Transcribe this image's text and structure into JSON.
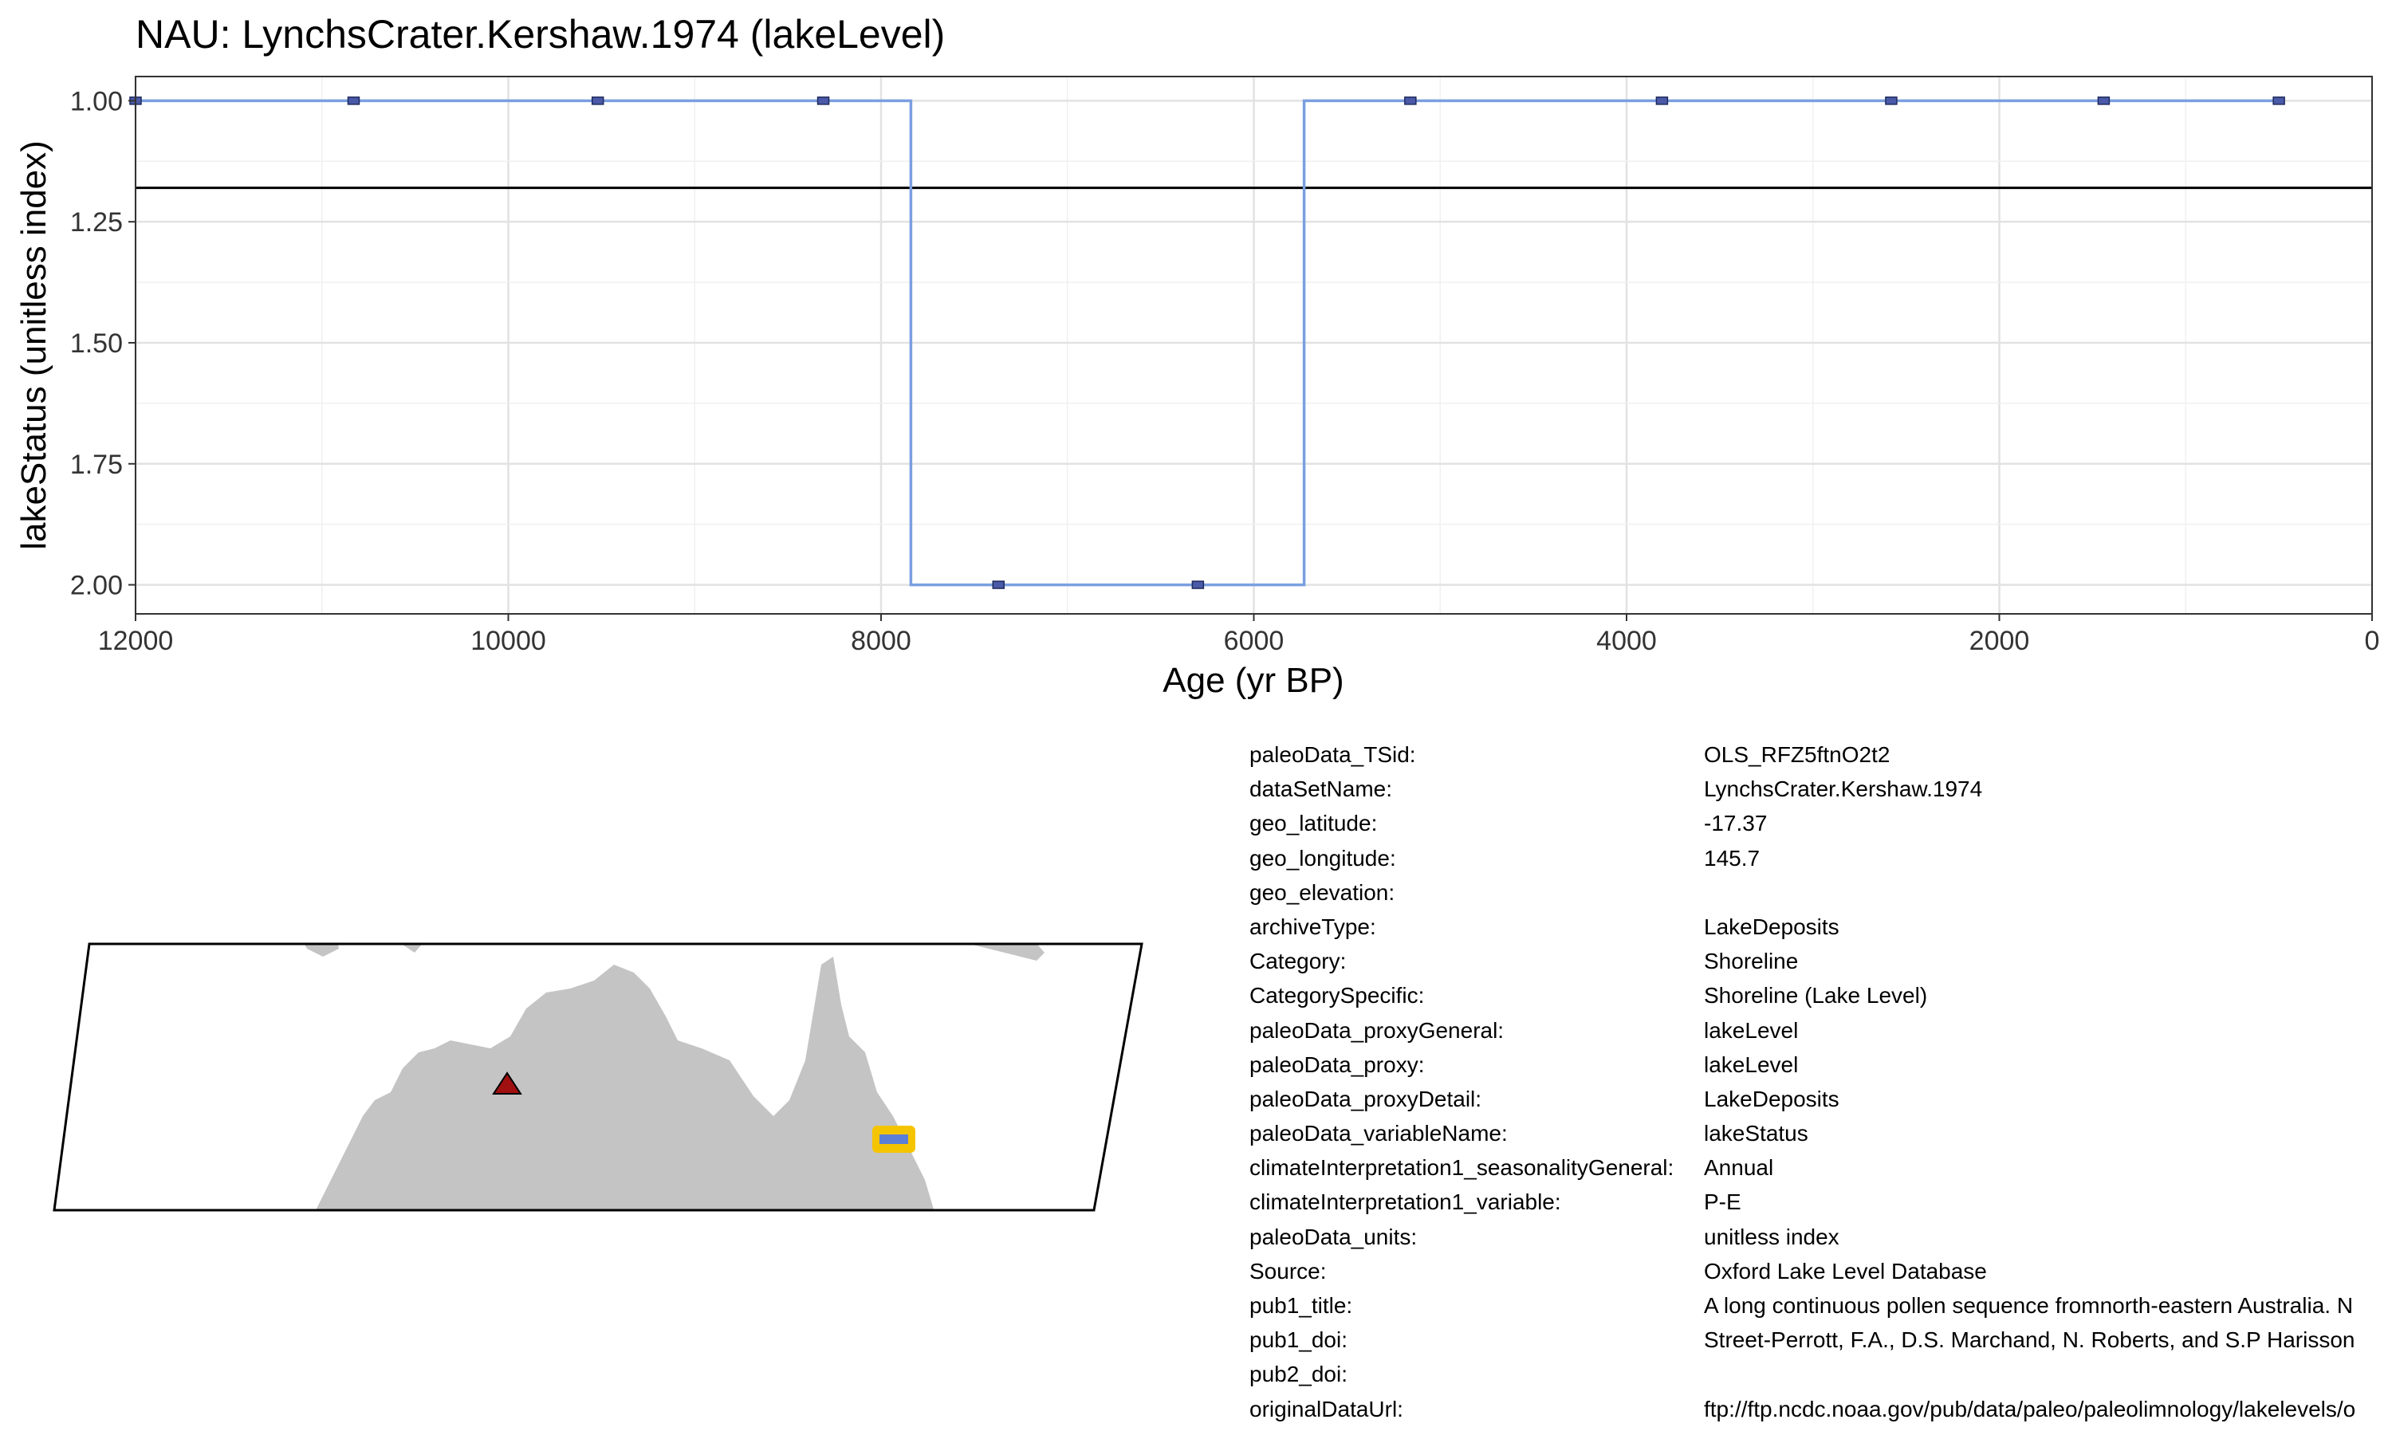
{
  "chart_data": {
    "type": "line",
    "title": "NAU: LynchsCrater.Kershaw.1974 (lakeLevel)",
    "xlabel": "Age (yr BP)",
    "ylabel": "lakeStatus (unitless index)",
    "xlim": [
      12000,
      0
    ],
    "ylim": [
      2.06,
      0.95
    ],
    "x_reversed": true,
    "y_reversed": true,
    "grid": true,
    "x_ticks": [
      12000,
      10000,
      8000,
      6000,
      4000,
      2000,
      0
    ],
    "x_tick_labels": [
      "12000",
      "10000",
      "8000",
      "6000",
      "4000",
      "2000",
      "0"
    ],
    "y_ticks": [
      1.0,
      1.25,
      1.5,
      1.75,
      2.0
    ],
    "y_tick_labels": [
      "1.00",
      "1.25",
      "1.50",
      "1.75",
      "2.00"
    ],
    "series": [
      {
        "step": true,
        "color": "#7b9fe0",
        "x": [
          12000,
          10830,
          9520,
          8310,
          7840,
          7370,
          6300,
          5730,
          5160,
          3810,
          2580,
          1440,
          500
        ],
        "y": [
          1,
          1,
          1,
          1,
          2,
          2,
          2,
          1,
          1,
          1,
          1,
          1,
          1
        ]
      }
    ],
    "markers": {
      "color": "#4a5aa8",
      "x": [
        12000,
        10830,
        9520,
        8310,
        7370,
        6300,
        5160,
        3810,
        2580,
        1440,
        500
      ],
      "y": [
        1,
        1,
        1,
        1,
        2,
        2,
        1,
        1,
        1,
        1,
        1
      ]
    },
    "hline": {
      "y": 1.18,
      "color": "#000000"
    }
  },
  "map": {
    "site_marker_color": "#a01010",
    "target_marker_color": "#5b7fd6",
    "target_highlight_color": "#f5c400",
    "land_color": "#c4c4c4"
  },
  "metadata": [
    {
      "key": "paleoData_TSid:",
      "value": "OLS_RFZ5ftnO2t2"
    },
    {
      "key": "dataSetName:",
      "value": "LynchsCrater.Kershaw.1974"
    },
    {
      "key": "geo_latitude:",
      "value": "-17.37"
    },
    {
      "key": "geo_longitude:",
      "value": "145.7"
    },
    {
      "key": "geo_elevation:",
      "value": ""
    },
    {
      "key": "archiveType:",
      "value": "LakeDeposits"
    },
    {
      "key": "Category:",
      "value": "Shoreline"
    },
    {
      "key": "CategorySpecific:",
      "value": "Shoreline (Lake Level)"
    },
    {
      "key": "paleoData_proxyGeneral:",
      "value": "lakeLevel"
    },
    {
      "key": "paleoData_proxy:",
      "value": "lakeLevel"
    },
    {
      "key": "paleoData_proxyDetail:",
      "value": "LakeDeposits"
    },
    {
      "key": "paleoData_variableName:",
      "value": "lakeStatus"
    },
    {
      "key": "climateInterpretation1_seasonalityGeneral:",
      "value": "Annual"
    },
    {
      "key": "climateInterpretation1_variable:",
      "value": "P-E"
    },
    {
      "key": "paleoData_units:",
      "value": "unitless index"
    },
    {
      "key": "Source:",
      "value": "Oxford Lake Level Database"
    },
    {
      "key": "pub1_title:",
      "value": "A long continuous pollen sequence fromnorth-eastern Australia. N"
    },
    {
      "key": "pub1_doi:",
      "value": "Street-Perrott, F.A., D.S. Marchand, N. Roberts, and S.P Harisson"
    },
    {
      "key": "pub2_doi:",
      "value": ""
    },
    {
      "key": "originalDataUrl:",
      "value": "ftp://ftp.ncdc.noaa.gov/pub/data/paleo/paleolimnology/lakelevels/o"
    }
  ]
}
